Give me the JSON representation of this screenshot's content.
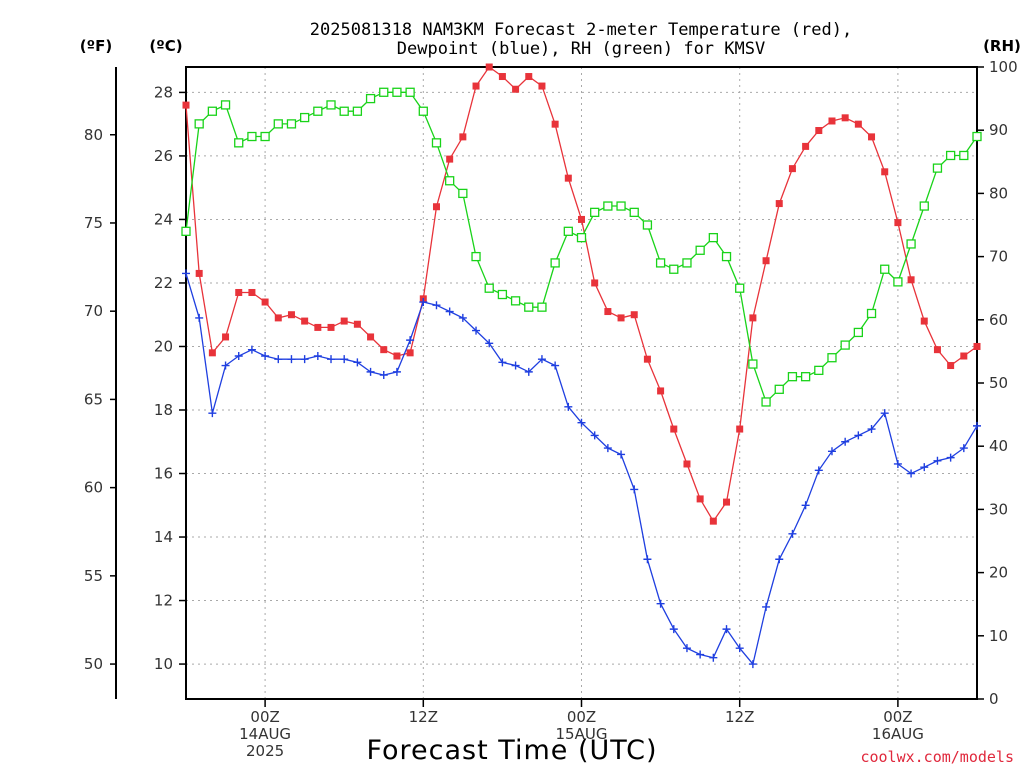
{
  "chart_data": {
    "type": "line",
    "title_line1": "2025081318 NAM3KM Forecast 2-meter Temperature (red),",
    "title_line2": "Dewpoint (blue), RH (green) for KMSV",
    "xlabel": "Forecast Time (UTC)",
    "credit": "coolwx.com/models",
    "unit_f": "(ºF)",
    "unit_c": "(ºC)",
    "unit_rh": "(RH)",
    "x_unit": "hours from 2025-08-13 18Z",
    "xlim": [
      0,
      60
    ],
    "ylim_c": [
      8.9,
      28.8
    ],
    "ylim_rh": [
      0,
      100
    ],
    "x_ticks": [
      {
        "x": 6,
        "lines": [
          "00Z",
          "14AUG",
          "2025"
        ]
      },
      {
        "x": 18,
        "lines": [
          "12Z"
        ]
      },
      {
        "x": 30,
        "lines": [
          "00Z",
          "15AUG"
        ]
      },
      {
        "x": 42,
        "lines": [
          "12Z"
        ]
      },
      {
        "x": 54,
        "lines": [
          "00Z",
          "16AUG"
        ]
      }
    ],
    "y_ticks_c": [
      "10",
      "12",
      "14",
      "16",
      "18",
      "20",
      "22",
      "24",
      "26",
      "28"
    ],
    "y_ticks_f": [
      "50",
      "55",
      "60",
      "65",
      "70",
      "75",
      "80"
    ],
    "y_ticks_rh": [
      "0",
      "10",
      "20",
      "30",
      "40",
      "50",
      "60",
      "70",
      "80",
      "90",
      "100"
    ],
    "colors": {
      "temperature": "#e8333a",
      "dewpoint": "#1f3fe0",
      "rh": "#19d319"
    },
    "series": [
      {
        "name": "Temperature",
        "axis": "c",
        "marker": "filled-square",
        "x": [
          0,
          1,
          2,
          3,
          4,
          5,
          6,
          7,
          8,
          9,
          10,
          11,
          12,
          13,
          14,
          15,
          16,
          17,
          18,
          19,
          20,
          21,
          22,
          23,
          24,
          25,
          26,
          27,
          28,
          29,
          30,
          31,
          32,
          33,
          34,
          35,
          36,
          37,
          38,
          39,
          40,
          41,
          42,
          43,
          44,
          45,
          46,
          47,
          48,
          49,
          50,
          51,
          52,
          53,
          54,
          55,
          56,
          57,
          58,
          59,
          60
        ],
        "values": [
          27.6,
          22.3,
          19.8,
          20.3,
          21.7,
          21.7,
          21.4,
          20.9,
          21.0,
          20.8,
          20.6,
          20.6,
          20.8,
          20.7,
          20.3,
          19.9,
          19.7,
          19.8,
          21.5,
          24.4,
          25.9,
          26.6,
          28.2,
          28.8,
          28.5,
          28.1,
          28.5,
          28.2,
          27.0,
          25.3,
          24.0,
          22.0,
          21.1,
          20.9,
          21.0,
          19.6,
          18.6,
          17.4,
          16.3,
          15.2,
          14.5,
          15.1,
          17.4,
          20.9,
          22.7,
          24.5,
          25.6,
          26.3,
          26.8,
          27.1,
          27.2,
          27.0,
          26.6,
          25.5,
          23.9,
          22.1,
          20.8,
          19.9,
          19.4,
          19.7,
          20.0
        ]
      },
      {
        "name": "Dewpoint",
        "axis": "c",
        "marker": "plus",
        "x": [
          0,
          1,
          2,
          3,
          4,
          5,
          6,
          7,
          8,
          9,
          10,
          11,
          12,
          13,
          14,
          15,
          16,
          17,
          18,
          19,
          20,
          21,
          22,
          23,
          24,
          25,
          26,
          27,
          28,
          29,
          30,
          31,
          32,
          33,
          34,
          35,
          36,
          37,
          38,
          39,
          40,
          41,
          42,
          43,
          44,
          45,
          46,
          47,
          48,
          49,
          50,
          51,
          52,
          53,
          54,
          55,
          56,
          57,
          58,
          59,
          60
        ],
        "values": [
          22.3,
          20.9,
          17.9,
          19.4,
          19.7,
          19.9,
          19.7,
          19.6,
          19.6,
          19.6,
          19.7,
          19.6,
          19.6,
          19.5,
          19.2,
          19.1,
          19.2,
          20.2,
          21.4,
          21.3,
          21.1,
          20.9,
          20.5,
          20.1,
          19.5,
          19.4,
          19.2,
          19.6,
          19.4,
          18.1,
          17.6,
          17.2,
          16.8,
          16.6,
          15.5,
          13.3,
          11.9,
          11.1,
          10.5,
          10.3,
          10.2,
          11.1,
          10.5,
          10.0,
          11.8,
          13.3,
          14.1,
          15.0,
          16.1,
          16.7,
          17.0,
          17.2,
          17.4,
          17.9,
          16.3,
          16.0,
          16.2,
          16.4,
          16.5,
          16.8,
          17.5
        ]
      },
      {
        "name": "RH",
        "axis": "rh",
        "marker": "open-square",
        "x": [
          0,
          1,
          2,
          3,
          4,
          5,
          6,
          7,
          8,
          9,
          10,
          11,
          12,
          13,
          14,
          15,
          16,
          17,
          18,
          19,
          20,
          21,
          22,
          23,
          24,
          25,
          26,
          27,
          28,
          29,
          30,
          31,
          32,
          33,
          34,
          35,
          36,
          37,
          38,
          39,
          40,
          41,
          42,
          43,
          44,
          45,
          46,
          47,
          48,
          49,
          50,
          51,
          52,
          53,
          54,
          55,
          56,
          57,
          58,
          59,
          60
        ],
        "values": [
          74,
          91,
          93,
          94,
          88,
          89,
          89,
          91,
          91,
          92,
          93,
          94,
          93,
          93,
          95,
          96,
          96,
          96,
          93,
          88,
          82,
          80,
          70,
          65,
          64,
          63,
          62,
          62,
          69,
          74,
          73,
          77,
          78,
          78,
          77,
          75,
          69,
          68,
          69,
          71,
          73,
          70,
          65,
          53,
          47,
          49,
          51,
          51,
          52,
          54,
          56,
          58,
          61,
          68,
          66,
          72,
          78,
          84,
          86,
          86,
          89
        ]
      }
    ]
  }
}
